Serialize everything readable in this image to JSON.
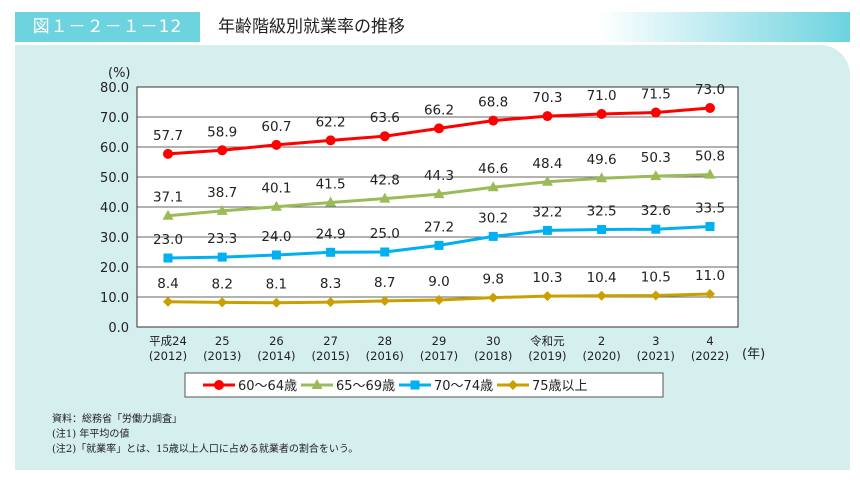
{
  "header": {
    "figure_no": "図１－２－１－12",
    "title": "年齢階級別就業率の推移"
  },
  "chart_data": {
    "type": "line",
    "ylabel": "(%)",
    "xlabel": "(年)",
    "ylim": [
      0,
      80
    ],
    "yticks": [
      "0.0",
      "10.0",
      "20.0",
      "30.0",
      "40.0",
      "50.0",
      "60.0",
      "70.0",
      "80.0"
    ],
    "grid": true,
    "legend": "bottom",
    "categories": [
      [
        "平成24",
        "(2012)"
      ],
      [
        "25",
        "(2013)"
      ],
      [
        "26",
        "(2014)"
      ],
      [
        "27",
        "(2015)"
      ],
      [
        "28",
        "(2016)"
      ],
      [
        "29",
        "(2017)"
      ],
      [
        "30",
        "(2018)"
      ],
      [
        "令和元",
        "(2019)"
      ],
      [
        "2",
        "(2020)"
      ],
      [
        "3",
        "(2021)"
      ],
      [
        "4",
        "(2022)"
      ]
    ],
    "series": [
      {
        "name": "60～64歳",
        "color": "#ff0000",
        "marker": "circle",
        "values": [
          57.7,
          58.9,
          60.7,
          62.2,
          63.6,
          66.2,
          68.8,
          70.3,
          71.0,
          71.5,
          73.0
        ]
      },
      {
        "name": "65～69歳",
        "color": "#9bbb59",
        "marker": "triangle",
        "values": [
          37.1,
          38.7,
          40.1,
          41.5,
          42.8,
          44.3,
          46.6,
          48.4,
          49.6,
          50.3,
          50.8
        ]
      },
      {
        "name": "70～74歳",
        "color": "#00b0f0",
        "marker": "square",
        "values": [
          23.0,
          23.3,
          24.0,
          24.9,
          25.0,
          27.2,
          30.2,
          32.2,
          32.5,
          32.6,
          33.5
        ]
      },
      {
        "name": "75歳以上",
        "color": "#c9a000",
        "marker": "diamond",
        "values": [
          8.4,
          8.2,
          8.1,
          8.3,
          8.7,
          9.0,
          9.8,
          10.3,
          10.4,
          10.5,
          11.0
        ]
      }
    ]
  },
  "notes": [
    "資料：総務省「労働力調査」",
    "(注1) 年平均の値",
    "(注2)「就業率」とは、15歳以上人口に占める就業者の割合をいう。"
  ]
}
